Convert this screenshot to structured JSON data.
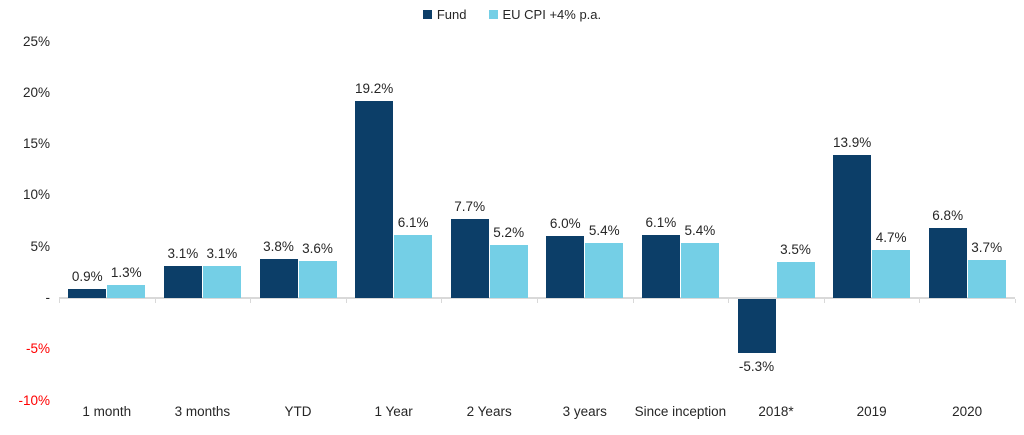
{
  "colors": {
    "fund": "#0c3e68",
    "cpi": "#74cfe6",
    "negative_axis_label": "#ff0000",
    "axis_line": "#d9d9d9",
    "text": "#262626"
  },
  "chart_data": {
    "type": "bar",
    "title": "",
    "xlabel": "",
    "ylabel": "",
    "categories": [
      "1 month",
      "3 months",
      "YTD",
      "1 Year",
      "2 Years",
      "3 years",
      "Since inception",
      "2018*",
      "2019",
      "2020"
    ],
    "series": [
      {
        "name": "Fund",
        "color": "#0c3e68",
        "values": [
          0.9,
          3.1,
          3.8,
          19.2,
          7.7,
          6.0,
          6.1,
          -5.3,
          13.9,
          6.8
        ]
      },
      {
        "name": "EU CPI +4% p.a.",
        "color": "#74cfe6",
        "values": [
          1.3,
          3.1,
          3.6,
          6.1,
          5.2,
          5.4,
          5.4,
          3.5,
          4.7,
          3.7
        ]
      }
    ],
    "value_label_format": "one-decimal-percent",
    "ylim": [
      -10,
      25
    ],
    "yticks": [
      {
        "value": 25,
        "label": "25%"
      },
      {
        "value": 20,
        "label": "20%"
      },
      {
        "value": 15,
        "label": "15%"
      },
      {
        "value": 10,
        "label": "10%"
      },
      {
        "value": 5,
        "label": "5%"
      },
      {
        "value": 0,
        "label": "-"
      },
      {
        "value": -5,
        "label": "-5%"
      },
      {
        "value": -10,
        "label": "-10%"
      }
    ],
    "grid": false,
    "legend_position": "top-center",
    "value_labels": true
  }
}
